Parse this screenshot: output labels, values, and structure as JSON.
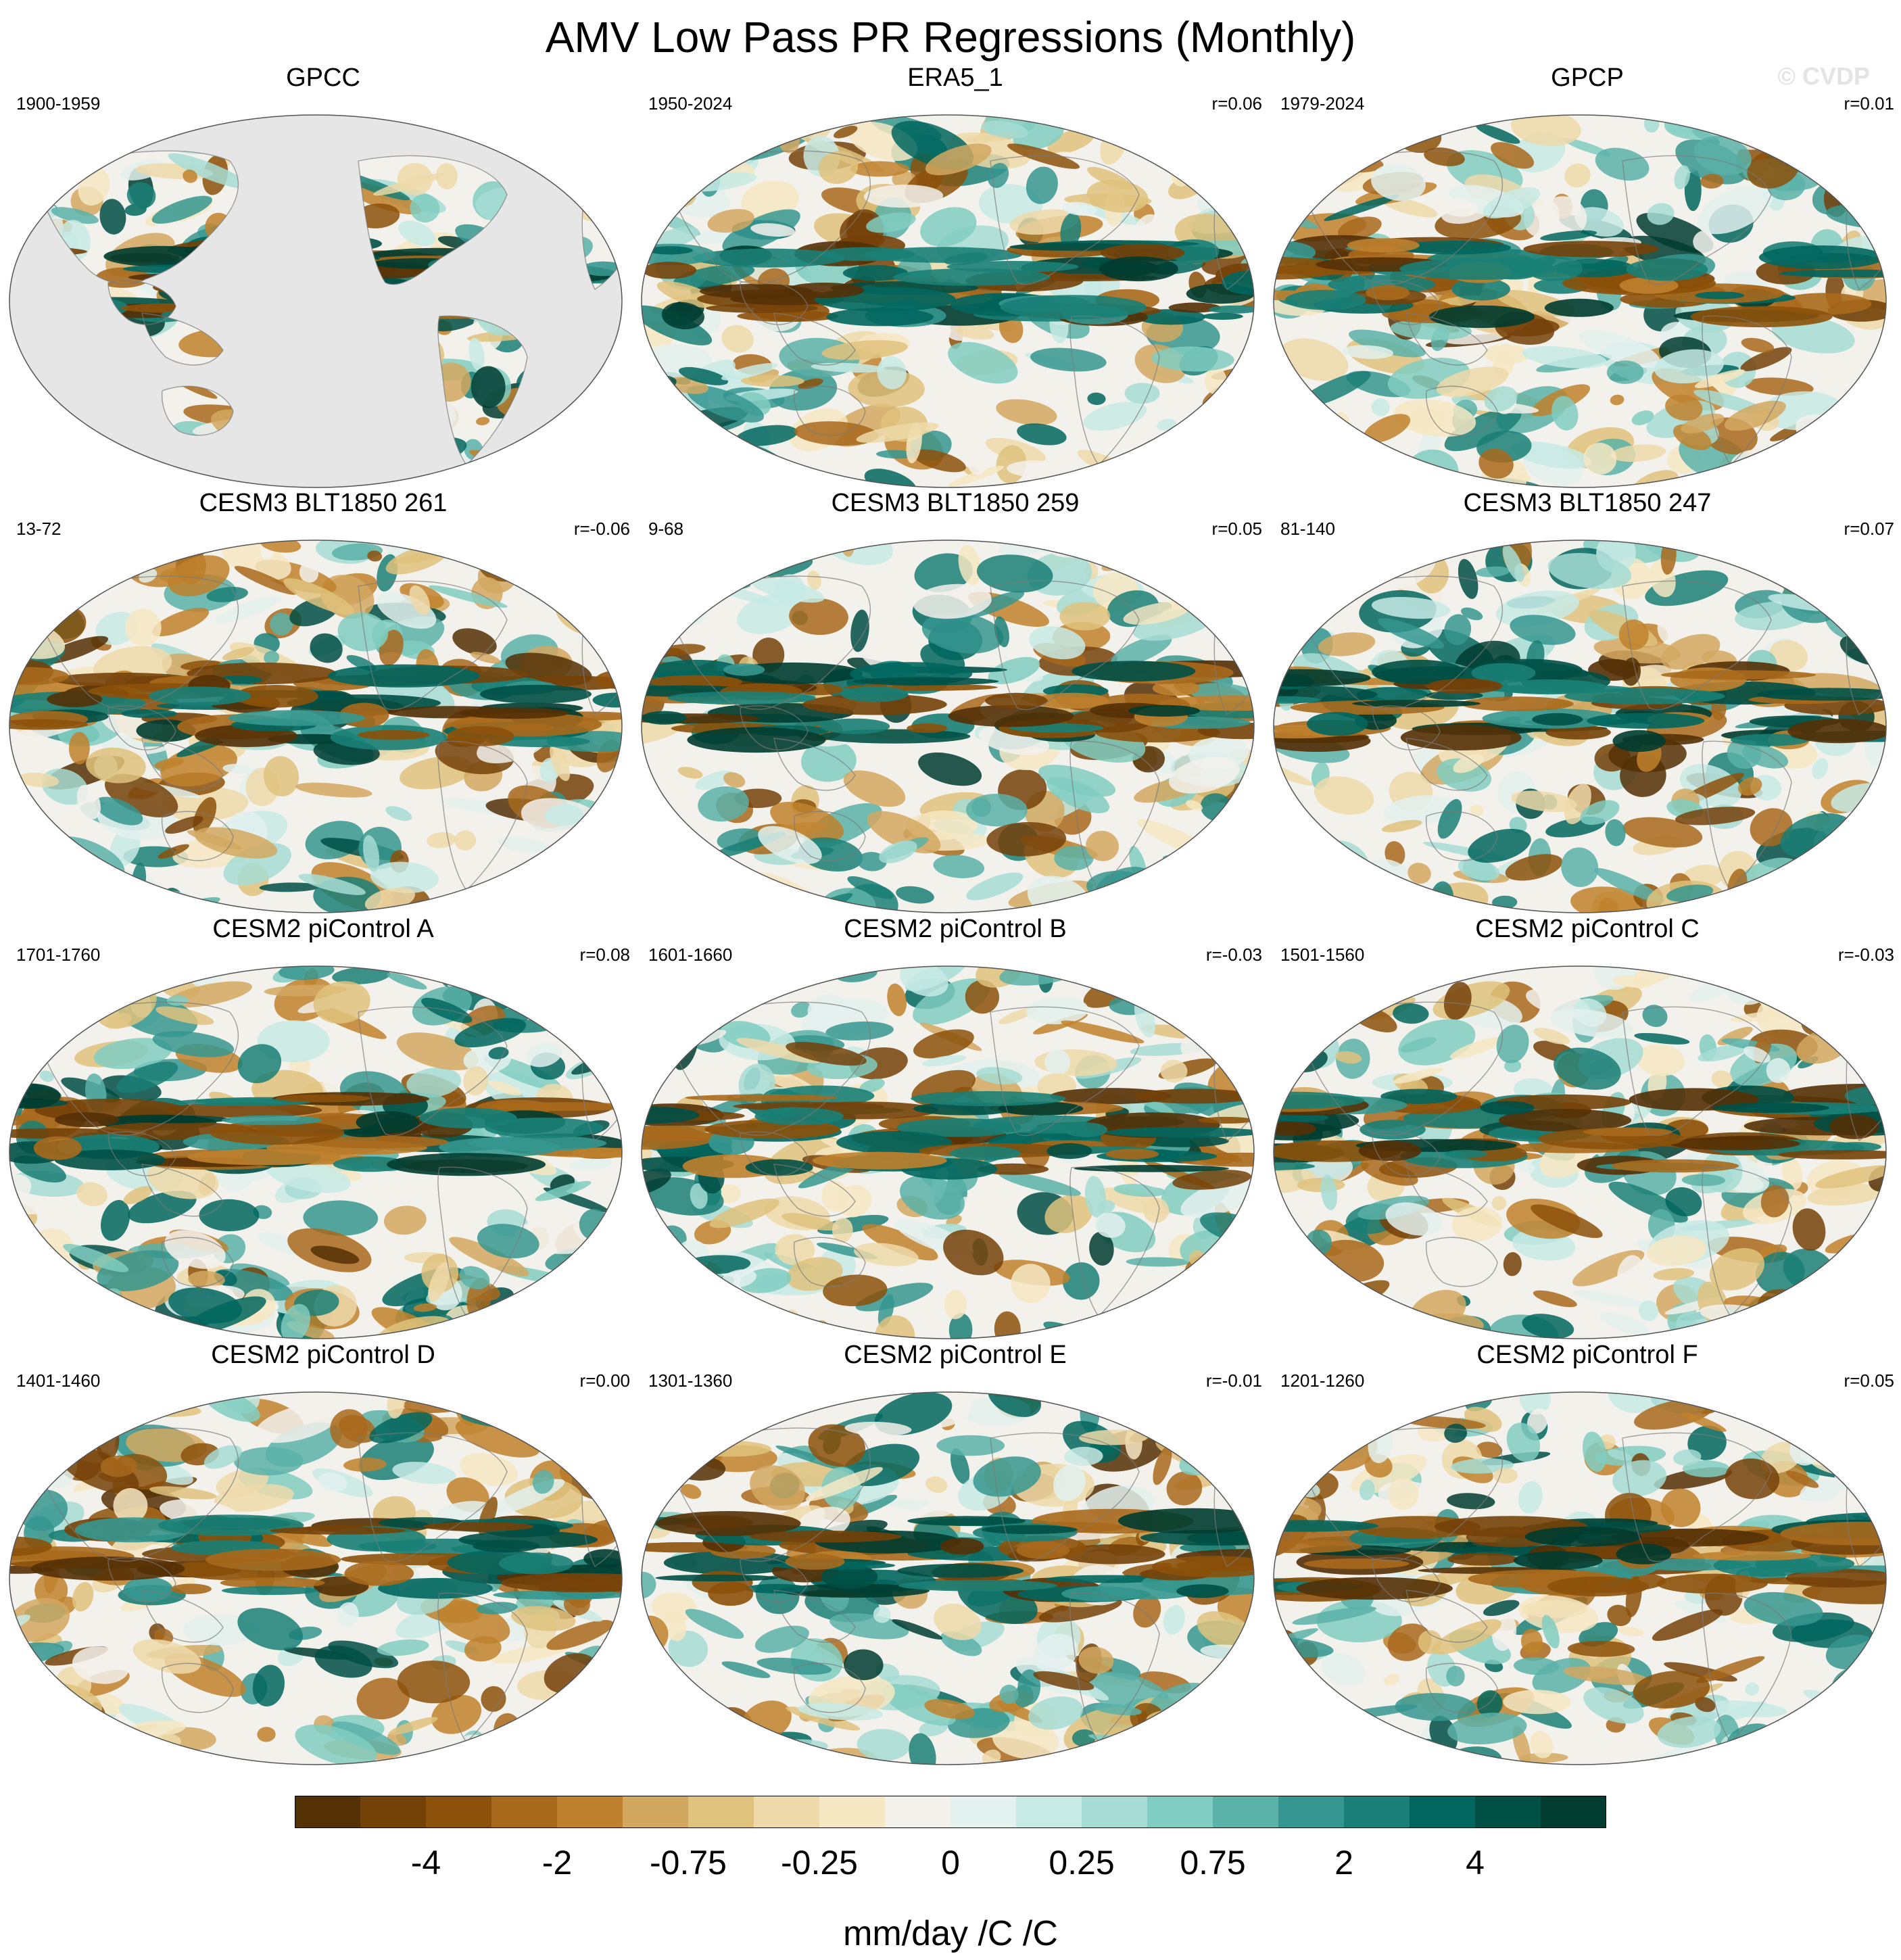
{
  "chart_data": {
    "type": "heatmap",
    "title": "AMV Low Pass PR Regressions (Monthly)",
    "watermark": "© CVDP",
    "projection": "Robinson (global, Pacific-centered)",
    "panels": [
      {
        "title": "GPCC",
        "period": "1900-1959",
        "r": "",
        "coverage": "land-only"
      },
      {
        "title": "ERA5_1",
        "period": "1950-2024",
        "r": "r=0.06",
        "coverage": "global"
      },
      {
        "title": "GPCP",
        "period": "1979-2024",
        "r": "r=0.01",
        "coverage": "global"
      },
      {
        "title": "CESM3 BLT1850 261",
        "period": "13-72",
        "r": "r=-0.06",
        "coverage": "global"
      },
      {
        "title": "CESM3 BLT1850 259",
        "period": "9-68",
        "r": "r=0.05",
        "coverage": "global"
      },
      {
        "title": "CESM3 BLT1850 247",
        "period": "81-140",
        "r": "r=0.07",
        "coverage": "global"
      },
      {
        "title": "CESM2 piControl A",
        "period": "1701-1760",
        "r": "r=0.08",
        "coverage": "global"
      },
      {
        "title": "CESM2 piControl B",
        "period": "1601-1660",
        "r": "r=-0.03",
        "coverage": "global"
      },
      {
        "title": "CESM2 piControl C",
        "period": "1501-1560",
        "r": "r=-0.03",
        "coverage": "global"
      },
      {
        "title": "CESM2 piControl D",
        "period": "1401-1460",
        "r": "r=0.00",
        "coverage": "global"
      },
      {
        "title": "CESM2 piControl E",
        "period": "1301-1360",
        "r": "r=-0.01",
        "coverage": "global"
      },
      {
        "title": "CESM2 piControl F",
        "period": "1201-1260",
        "r": "r=0.05",
        "coverage": "global"
      }
    ],
    "colorbar": {
      "label": "mm/day /C /C",
      "tick_labels": [
        "-4",
        "-2",
        "-0.75",
        "-0.25",
        "0",
        "0.25",
        "0.75",
        "2",
        "4"
      ],
      "colors": [
        "#543005",
        "#744109",
        "#8c510a",
        "#a8691c",
        "#bf812d",
        "#d2a860",
        "#dfc27d",
        "#edd9a9",
        "#f6e8c3",
        "#f3f1ec",
        "#e3f1ef",
        "#c7eae5",
        "#a6dcd3",
        "#80cdc1",
        "#5ab2a8",
        "#35978f",
        "#1a7f76",
        "#01665e",
        "#004f45",
        "#003c30"
      ]
    }
  }
}
